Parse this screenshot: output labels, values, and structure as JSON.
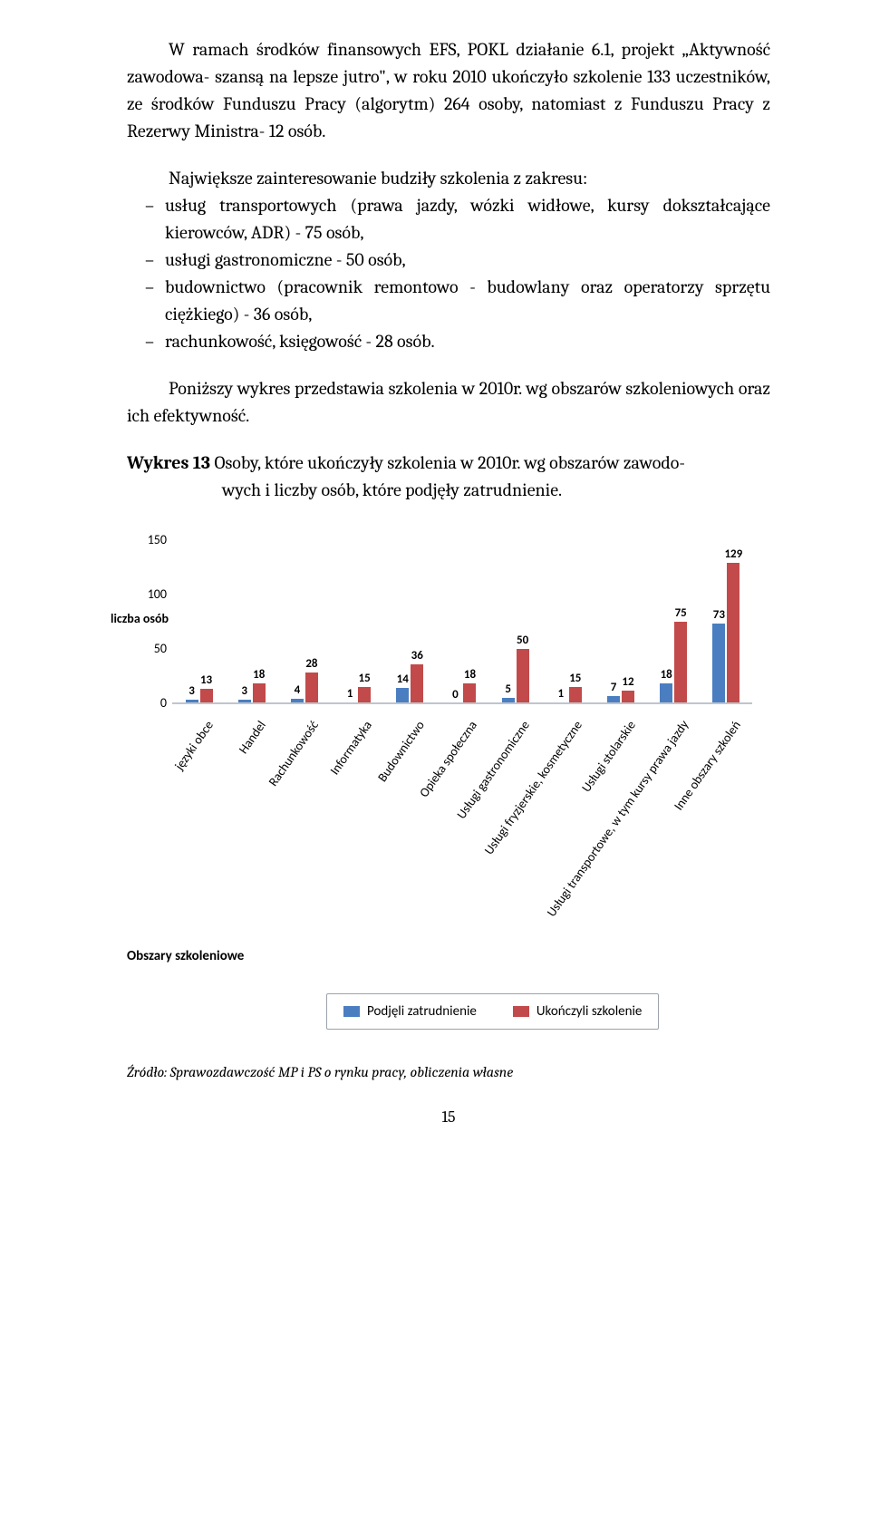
{
  "para1": "W ramach środków finansowych EFS, POKL działanie 6.1, projekt „Aktywność zawodowa- szansą na lepsze jutro\", w roku 2010 ukończyło szkolenie 133 uczestników, ze środków Funduszu Pracy (algorytm) 264 osoby, natomiast z Funduszu Pracy z Rezerwy Ministra- 12 osób.",
  "intro2": "Największe zainteresowanie budziły szkolenia z zakresu:",
  "bullets": [
    "usług transportowych (prawa jazdy, wózki widłowe, kursy dokształcające kierowców, ADR)                                       - 75 osób,",
    "usługi gastronomiczne                                - 50 osób,",
    "budownictwo (pracownik remontowo - budowlany oraz operatorzy sprzętu ciężkiego)                                               - 36 osób,",
    "rachunkowość, księgowość                        - 28 osób."
  ],
  "para3": "Poniższy wykres przedstawia szkolenia w 2010r. wg obszarów szkoleniowych oraz ich efektywność.",
  "chartTitleLead": "Wykres 13",
  "chartTitleRest": " Osoby, które ukończyły szkolenia w 2010r. wg obszarów zawodo-",
  "chartTitleLine2": "wych i liczby osób, które podjęły zatrudnienie.",
  "source": "Źródło: Sprawozdawczość MP i PS o rynku pracy, obliczenia własne",
  "pageNum": "15",
  "chart": {
    "type": "bar",
    "y_axis_label": "liczba osób",
    "x_axis_title": "Obszary szkoleniowe",
    "categories": [
      "języki obce",
      "Handel",
      "Rachunkowość",
      "Informatyka",
      "Budownictwo",
      "Opieka społeczna",
      "Usługi gastronomiczne",
      "Usługi fryzjerskie, kosmetyczne",
      "Usługi stolarskie",
      "Usługi transportowe, w tym kursy prawa jazdy",
      "Inne obszary szkoleń"
    ],
    "series": [
      {
        "name": "Podjęli zatrudnienie",
        "color": "#4a7ec1",
        "values": [
          3,
          3,
          4,
          1,
          14,
          0,
          5,
          1,
          7,
          18,
          73
        ]
      },
      {
        "name": "Ukończyli szkolenie",
        "color": "#c24a4a",
        "values": [
          13,
          18,
          28,
          15,
          36,
          18,
          50,
          15,
          12,
          75,
          129
        ]
      }
    ],
    "yticks": [
      0,
      50,
      100,
      150
    ],
    "ylim_max": 150,
    "bg": "#ffffff",
    "grid_color": "#bfc5cb",
    "bar_label_fontsize": 13,
    "axis_label_fontsize": 14,
    "legend_fontsize": 15
  }
}
